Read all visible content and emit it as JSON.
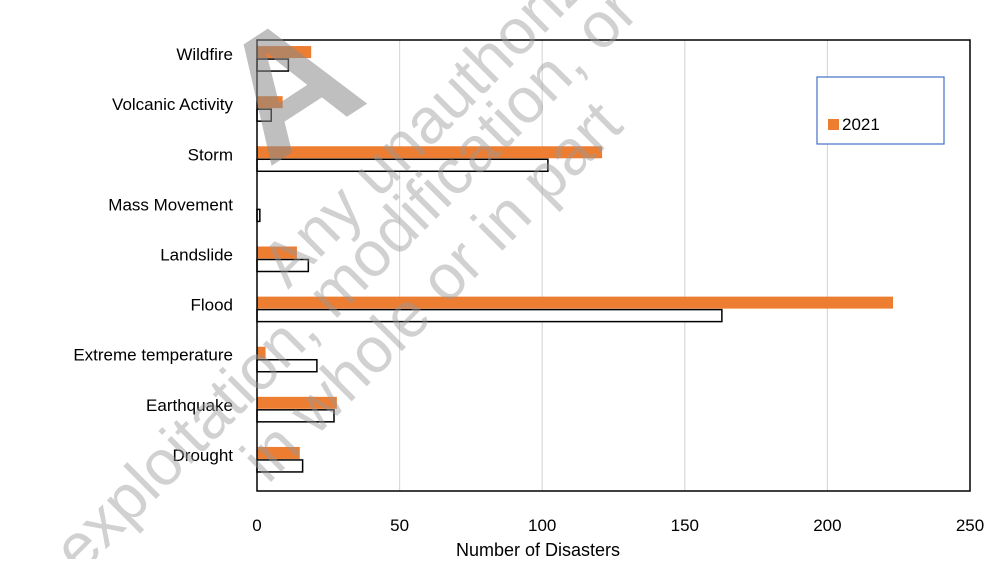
{
  "chart_data": {
    "type": "bar",
    "orientation": "horizontal",
    "categories": [
      "Wildfire",
      "Volcanic Activity",
      "Storm",
      "Mass Movement",
      "Landslide",
      "Flood",
      "Extreme temperature",
      "Earthquake",
      "Drought"
    ],
    "series": [
      {
        "name": "2021",
        "values": [
          19,
          9,
          121,
          0,
          14,
          223,
          3,
          28,
          15
        ],
        "color": "#ED7D31"
      },
      {
        "values": [
          11,
          5,
          102,
          1,
          18,
          163,
          21,
          27,
          16
        ],
        "color": "#ffffff",
        "stroke": "#000000"
      }
    ],
    "xlabel": "Number of Disasters",
    "xlim": [
      0,
      250
    ],
    "xticks": [
      0,
      50,
      100,
      150,
      200,
      250
    ],
    "grid": "vertical",
    "legend": {
      "position": "top-right",
      "entries": [
        "2021"
      ]
    }
  },
  "watermark": {
    "lines": [
      "Any unauthorized reproduction, or re",
      "exploitation, modification, or in part, is str",
      "in whole or in part"
    ],
    "logo_letter": "A"
  }
}
